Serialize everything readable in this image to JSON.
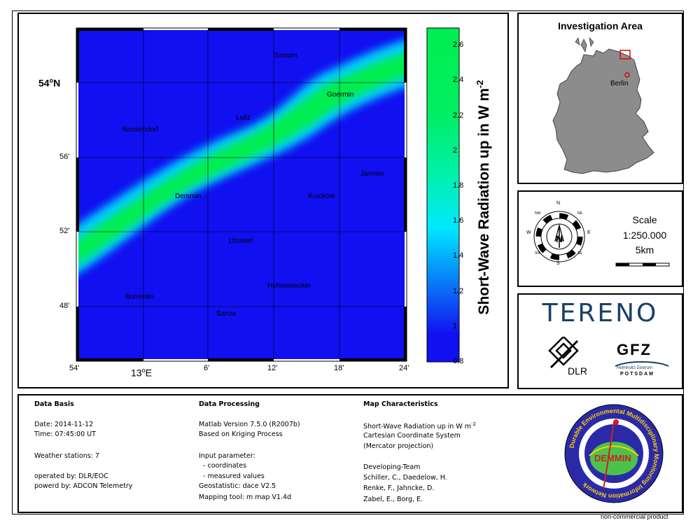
{
  "map": {
    "lat_labels": [
      "54°N",
      "56'",
      "52'",
      "48'"
    ],
    "lon_labels": [
      "54'",
      "13°E",
      "6'",
      "12'",
      "18'",
      "24'"
    ],
    "cities": [
      "Sassen",
      "Goermin",
      "Loitz",
      "Nossendorf",
      "Jarmen",
      "Demmin",
      "Kruckow",
      "Utzedel",
      "Hohenmocker",
      "Borrentin",
      "Sarow"
    ],
    "colors": {
      "low": "#1010f0",
      "mid": "#00e0ff",
      "high": "#00ee50"
    }
  },
  "colorbar": {
    "label": "Short-Wave Radiation up in W m",
    "label_sup": "-2",
    "ticks": [
      "2.6",
      "2.4",
      "2.2",
      "2",
      "1.8",
      "1.6",
      "1.4",
      "1.2",
      "1",
      "0.8"
    ],
    "min": 0.8,
    "max": 2.7
  },
  "investigation": {
    "title": "Investigation Area",
    "city": "Berlin"
  },
  "compass": {
    "n": "N",
    "s": "S",
    "e": "E",
    "w": "W",
    "nw": "NW",
    "ne": "NE",
    "sw": "SW",
    "se": "SE"
  },
  "scale": {
    "title": "Scale",
    "ratio": "1:250.000",
    "distance": "5km"
  },
  "logos": {
    "tereno": "TERENO",
    "dlr": "DLR",
    "gfz": "GFZ",
    "gfz_sub1": "Helmholtz-Zentrum",
    "gfz_sub2": "POTSDAM",
    "demmin": "DEMMIN",
    "demmin_ring": "Durable Environmental Multidisciplinary Monitoring Information Network"
  },
  "info": {
    "data_basis": {
      "heading": "Data Basis",
      "date": "Date: 2014-11-12",
      "time": "Time: 07:45:00 UT",
      "stations": "Weather stations: 7",
      "operated": "operated by: DLR/EOC",
      "powered": "powerd by: ADCON Telemetry"
    },
    "processing": {
      "heading": "Data Processing",
      "matlab": "Matlab Version 7.5.0 (R2007b)",
      "kriging": "Based on Kriging Process",
      "input": "Input parameter:",
      "coords": "  - coordinates",
      "measured": "  - measured values",
      "geostat": "Geostatistic: dace V2.5",
      "mapping": "Mapping tool: m map V1.4d"
    },
    "characteristics": {
      "heading": "Map Characteristics",
      "line1": "Short-Wave Radiation up in W m",
      "line1_sup": "-2",
      "line2": "Cartesian Coordinate System",
      "line3": "(Mercator projection)",
      "team_heading": "Developing-Team",
      "team1": "Schiller, C., Daedelow, H.",
      "team2": "Renke, F., Jahncke, D.",
      "team3": "Zabel, E., Borg, E."
    },
    "footer": "non-commercial product"
  }
}
